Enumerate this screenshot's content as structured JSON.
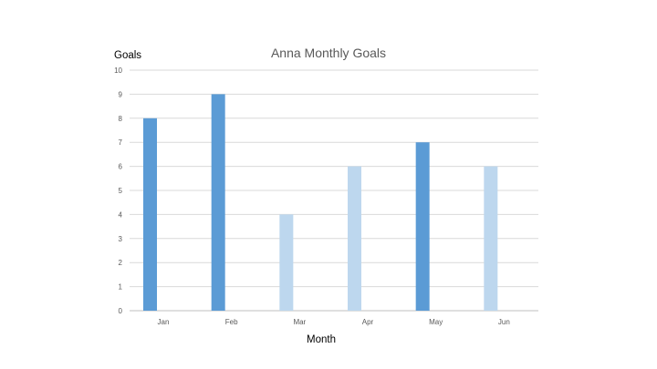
{
  "chart_data": {
    "type": "bar",
    "title": "Anna Monthly Goals",
    "xlabel": "Month",
    "ylabel": "Goals",
    "categories": [
      "Jan",
      "Feb",
      "Mar",
      "Apr",
      "May",
      "Jun"
    ],
    "values": [
      8,
      9,
      4,
      6,
      7,
      6
    ],
    "ylim": [
      0,
      10
    ],
    "yticks": [
      "0",
      "1",
      "2",
      "3",
      "4",
      "5",
      "6",
      "7",
      "8",
      "9",
      "10"
    ],
    "grid": true,
    "legend": "none",
    "bar_colors": [
      "#5b9bd5",
      "#5b9bd5",
      "#bdd7ee",
      "#bdd7ee",
      "#5b9bd5",
      "#bdd7ee"
    ],
    "gridline_color": "#d9d9d9",
    "axis_line_color": "#bfbfbf"
  }
}
